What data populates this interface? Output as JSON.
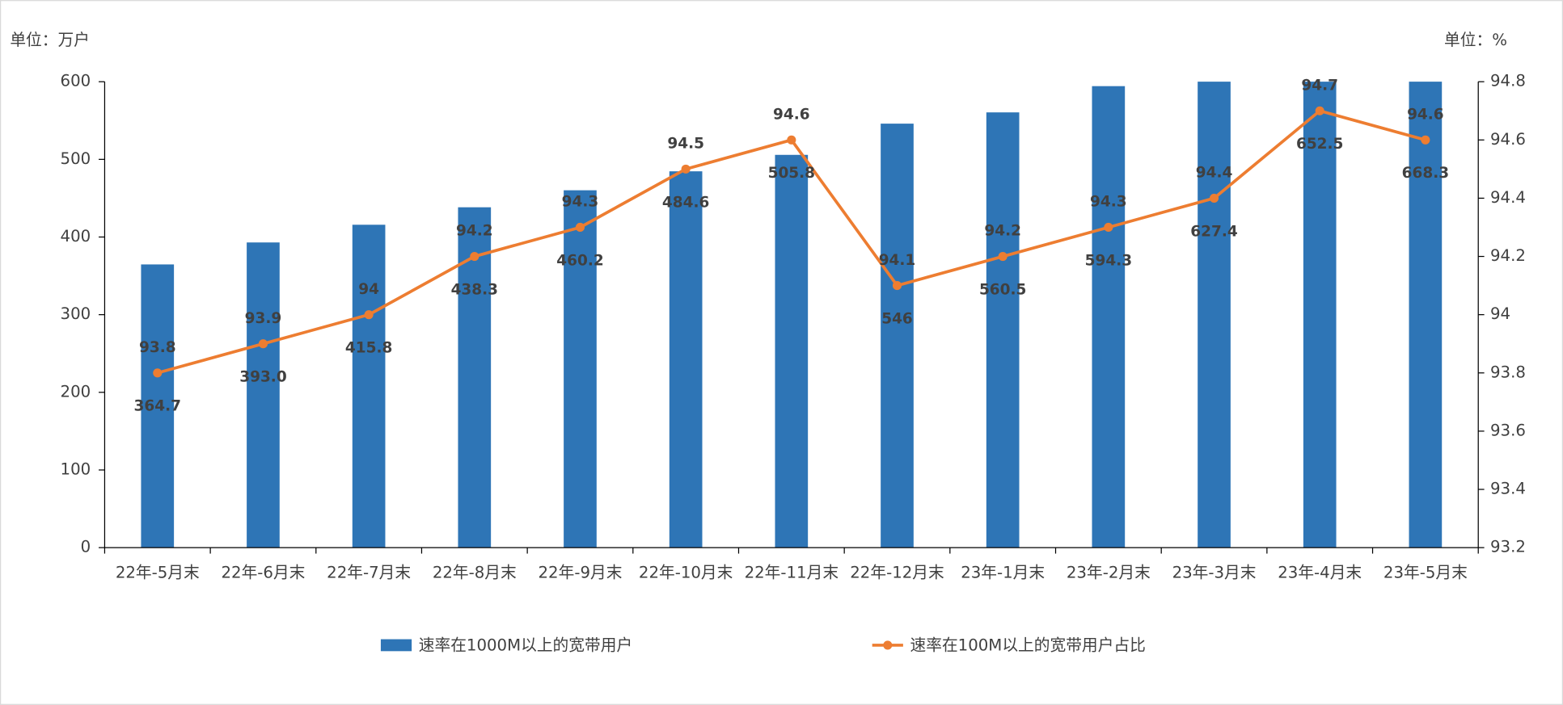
{
  "chart_data": {
    "type": "bar_line",
    "unit_left": "单位：万户",
    "unit_right": "单位：%",
    "categories": [
      "22年-5月末",
      "22年-6月末",
      "22年-7月末",
      "22年-8月末",
      "22年-9月末",
      "22年-10月末",
      "22年-11月末",
      "22年-12月末",
      "23年-1月末",
      "23年-2月末",
      "23年-3月末",
      "23年-4月末",
      "23年-5月末"
    ],
    "series": [
      {
        "name": "速率在1000M以上的宽带用户",
        "color": "#2e75b6",
        "type": "bar",
        "values": [
          364.7,
          393.0,
          415.8,
          438.3,
          460.2,
          484.6,
          505.8,
          546,
          560.5,
          594.3,
          627.4,
          652.5,
          668.3
        ],
        "value_labels": [
          "364.7",
          "393.0",
          "415.8",
          "438.3",
          "460.2",
          "484.6",
          "505.8",
          "546",
          "560.5",
          "594.3",
          "627.4",
          "652.5",
          "668.3"
        ]
      },
      {
        "name": "速率在100M以上的宽带用户占比",
        "color": "#ed7d31",
        "type": "line",
        "axis": "y2",
        "values": [
          93.8,
          93.9,
          94,
          94.2,
          94.3,
          94.5,
          94.6,
          94.1,
          94.2,
          94.3,
          94.4,
          94.7,
          94.6
        ]
      }
    ],
    "ylim": [
      0,
      600
    ],
    "yticks": [
      0,
      100,
      200,
      300,
      400,
      500,
      600
    ],
    "y2lim": [
      93.2,
      94.8
    ],
    "y2ticks": [
      93.2,
      93.4,
      93.6,
      93.8,
      94,
      94.2,
      94.4,
      94.6,
      94.8
    ],
    "legend": "bottom"
  }
}
